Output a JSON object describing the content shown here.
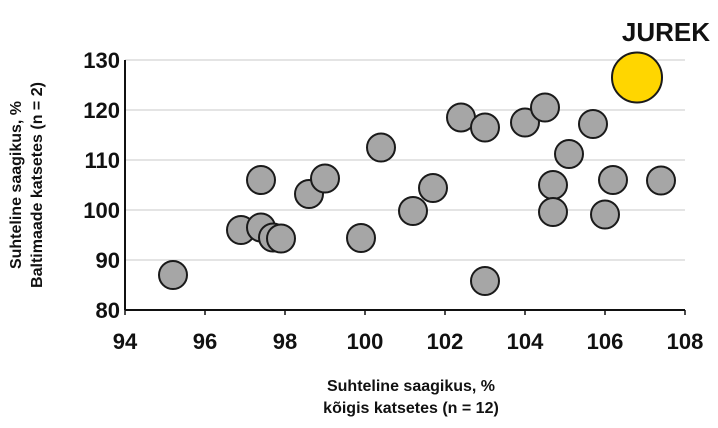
{
  "chart_data": {
    "type": "scatter",
    "title": "",
    "xlabel": [
      "Suhteline saagikus, %",
      "kõigis katsetes (n = 12)"
    ],
    "ylabel": [
      "Suhteline saagikus, %",
      "Baltimaade katsetes (n = 2)"
    ],
    "xlim": [
      94,
      108
    ],
    "ylim": [
      80,
      130
    ],
    "xticks": [
      94,
      96,
      98,
      100,
      102,
      104,
      106,
      108
    ],
    "yticks": [
      80,
      90,
      100,
      110,
      120,
      130
    ],
    "grid": true,
    "legend": "none",
    "colors": {
      "point_fill": "#a6a6a6",
      "point_stroke": "#1a1a1a",
      "highlight_fill": "#ffd600",
      "highlight_stroke": "#1a1a1a",
      "grid": "#c8c8c8"
    },
    "series": [
      {
        "points": [
          {
            "x": 95.2,
            "y": 87
          },
          {
            "x": 96.9,
            "y": 96
          },
          {
            "x": 97.4,
            "y": 96.5
          },
          {
            "x": 97.4,
            "y": 106
          },
          {
            "x": 97.7,
            "y": 94.5
          },
          {
            "x": 97.9,
            "y": 94.3
          },
          {
            "x": 98.6,
            "y": 103.2
          },
          {
            "x": 99.0,
            "y": 106.3
          },
          {
            "x": 99.9,
            "y": 94.4
          },
          {
            "x": 100.4,
            "y": 112.5
          },
          {
            "x": 101.2,
            "y": 99.8
          },
          {
            "x": 101.7,
            "y": 104.4
          },
          {
            "x": 102.4,
            "y": 118.5
          },
          {
            "x": 103.0,
            "y": 116.5
          },
          {
            "x": 103.0,
            "y": 85.8
          },
          {
            "x": 104.0,
            "y": 117.5
          },
          {
            "x": 104.5,
            "y": 120.5
          },
          {
            "x": 104.7,
            "y": 105
          },
          {
            "x": 104.7,
            "y": 99.6
          },
          {
            "x": 105.1,
            "y": 111.2
          },
          {
            "x": 105.7,
            "y": 117.2
          },
          {
            "x": 106.0,
            "y": 99.1
          },
          {
            "x": 106.2,
            "y": 106
          },
          {
            "x": 107.4,
            "y": 105.9
          }
        ]
      }
    ],
    "highlight": {
      "label": "JUREK",
      "x": 106.8,
      "y": 126.5
    }
  }
}
